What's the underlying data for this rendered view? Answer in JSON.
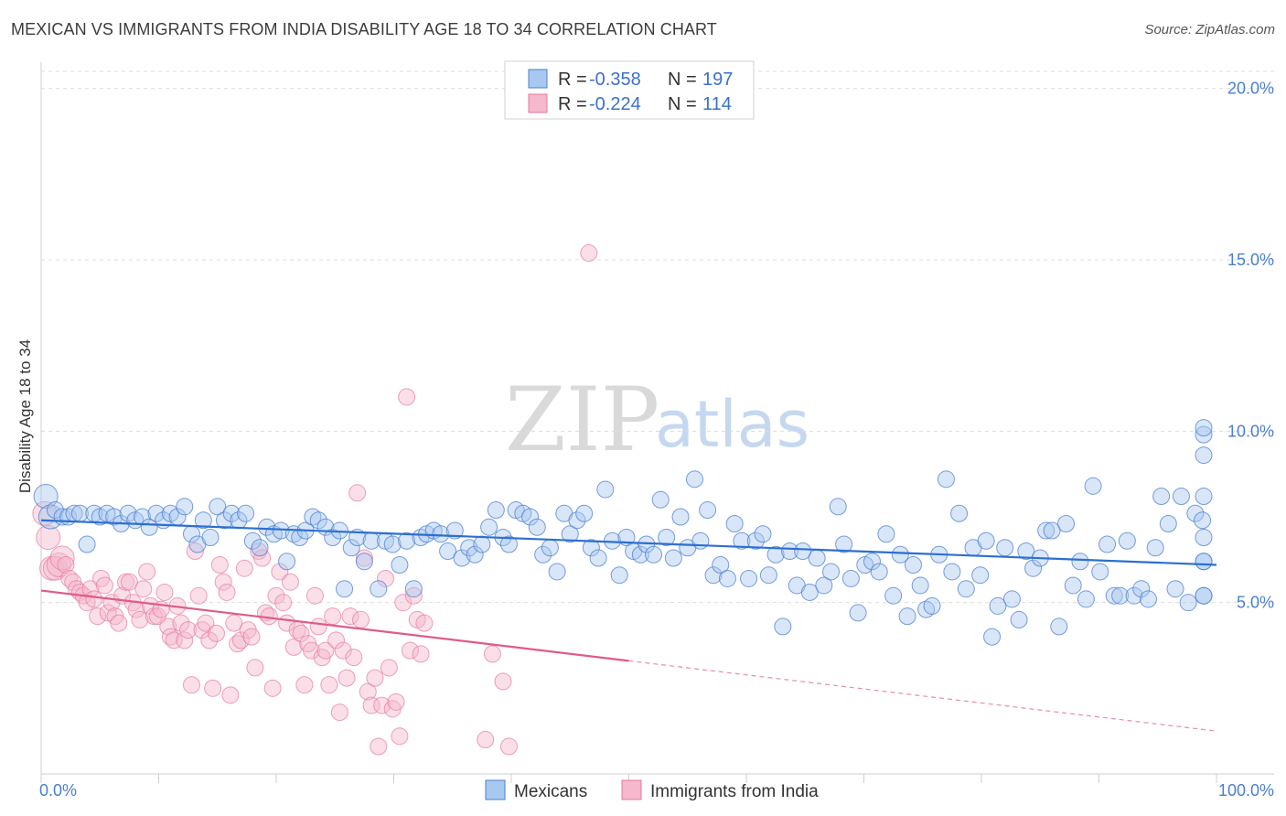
{
  "title": "MEXICAN VS IMMIGRANTS FROM INDIA DISABILITY AGE 18 TO 34 CORRELATION CHART",
  "source": "Source: ZipAtlas.com",
  "watermark": {
    "part1": "ZIP",
    "part2": "atlas"
  },
  "colors": {
    "blue": "#4a7fd0",
    "blue_fill": "#a9c8ef",
    "blue_line": "#2c6fd1",
    "pink_fill": "#f5b8cc",
    "pink_stroke": "#e8799c",
    "pink_line": "#e05a8a"
  },
  "legend": {
    "r_label": "R = ",
    "n_label": "N = ",
    "series": [
      {
        "name": "Mexicans",
        "r": "-0.358",
        "n": "197"
      },
      {
        "name": "Immigrants from India",
        "r": "-0.224",
        "n": "114"
      }
    ]
  },
  "chart_data": {
    "type": "scatter",
    "ylabel": "Disability Age 18 to 34",
    "xlabel": "",
    "xlim": [
      0,
      100
    ],
    "ylim": [
      0,
      20.5
    ],
    "x_tick_labels": [
      "0.0%",
      "100.0%"
    ],
    "y_ticks": [
      5,
      10,
      15,
      20
    ],
    "y_tick_labels": [
      "5.0%",
      "10.0%",
      "15.0%",
      "20.0%"
    ],
    "series": [
      {
        "name": "Mexicans",
        "r": -0.358,
        "n": 197,
        "trend": {
          "x": [
            0,
            100
          ],
          "y": [
            7.4,
            6.1
          ],
          "dashed_from": null
        },
        "points": [
          [
            0.4,
            8.1
          ],
          [
            0.8,
            7.5
          ],
          [
            1.2,
            7.7
          ],
          [
            1.8,
            7.5
          ],
          [
            2.3,
            7.5
          ],
          [
            2.8,
            7.6
          ],
          [
            3.3,
            7.6
          ],
          [
            3.9,
            6.7
          ],
          [
            4.5,
            7.6
          ],
          [
            5,
            7.5
          ],
          [
            5.6,
            7.6
          ],
          [
            6.2,
            7.5
          ],
          [
            6.8,
            7.3
          ],
          [
            7.4,
            7.6
          ],
          [
            8,
            7.4
          ],
          [
            8.6,
            7.5
          ],
          [
            9.2,
            7.2
          ],
          [
            9.8,
            7.6
          ],
          [
            10.4,
            7.4
          ],
          [
            11,
            7.6
          ],
          [
            11.6,
            7.5
          ],
          [
            12.2,
            7.8
          ],
          [
            12.8,
            7
          ],
          [
            13.3,
            6.7
          ],
          [
            13.8,
            7.4
          ],
          [
            14.4,
            6.9
          ],
          [
            15,
            7.8
          ],
          [
            15.6,
            7.4
          ],
          [
            16.2,
            7.6
          ],
          [
            16.8,
            7.4
          ],
          [
            17.4,
            7.6
          ],
          [
            18,
            6.8
          ],
          [
            18.6,
            6.6
          ],
          [
            19.2,
            7.2
          ],
          [
            19.8,
            7
          ],
          [
            20.4,
            7.1
          ],
          [
            20.9,
            6.2
          ],
          [
            21.5,
            7
          ],
          [
            22,
            6.9
          ],
          [
            22.5,
            7.1
          ],
          [
            23.1,
            7.5
          ],
          [
            23.6,
            7.4
          ],
          [
            24.2,
            7.2
          ],
          [
            24.8,
            6.9
          ],
          [
            25.4,
            7.1
          ],
          [
            25.8,
            5.4
          ],
          [
            26.4,
            6.6
          ],
          [
            26.9,
            6.9
          ],
          [
            27.5,
            6.2
          ],
          [
            28.1,
            6.8
          ],
          [
            28.7,
            5.4
          ],
          [
            29.3,
            6.8
          ],
          [
            29.9,
            6.7
          ],
          [
            30.5,
            6.1
          ],
          [
            31.1,
            6.8
          ],
          [
            31.7,
            5.4
          ],
          [
            32.3,
            6.9
          ],
          [
            32.8,
            7
          ],
          [
            33.4,
            7.1
          ],
          [
            34,
            7
          ],
          [
            34.6,
            6.5
          ],
          [
            35.2,
            7.1
          ],
          [
            35.8,
            6.3
          ],
          [
            36.4,
            6.6
          ],
          [
            36.9,
            6.4
          ],
          [
            37.5,
            6.7
          ],
          [
            38.1,
            7.2
          ],
          [
            38.7,
            7.7
          ],
          [
            39.3,
            6.9
          ],
          [
            39.8,
            6.7
          ],
          [
            40.4,
            7.7
          ],
          [
            41,
            7.6
          ],
          [
            41.6,
            7.5
          ],
          [
            42.2,
            7.2
          ],
          [
            42.7,
            6.4
          ],
          [
            43.3,
            6.6
          ],
          [
            43.9,
            5.9
          ],
          [
            44.5,
            7.6
          ],
          [
            45,
            7
          ],
          [
            45.6,
            7.4
          ],
          [
            46.2,
            7.6
          ],
          [
            46.8,
            6.6
          ],
          [
            47.4,
            6.3
          ],
          [
            48,
            8.3
          ],
          [
            48.6,
            6.8
          ],
          [
            49.2,
            5.8
          ],
          [
            49.8,
            6.9
          ],
          [
            50.4,
            6.5
          ],
          [
            51,
            6.4
          ],
          [
            51.5,
            6.7
          ],
          [
            52.1,
            6.4
          ],
          [
            52.7,
            8
          ],
          [
            53.2,
            6.9
          ],
          [
            53.8,
            6.3
          ],
          [
            54.4,
            7.5
          ],
          [
            55,
            6.6
          ],
          [
            55.6,
            8.6
          ],
          [
            56.1,
            6.8
          ],
          [
            56.7,
            7.7
          ],
          [
            57.2,
            5.8
          ],
          [
            57.8,
            6.1
          ],
          [
            58.4,
            5.7
          ],
          [
            59,
            7.3
          ],
          [
            59.6,
            6.8
          ],
          [
            60.2,
            5.7
          ],
          [
            60.8,
            6.8
          ],
          [
            61.4,
            7
          ],
          [
            61.9,
            5.8
          ],
          [
            62.5,
            6.4
          ],
          [
            63.1,
            4.3
          ],
          [
            63.7,
            6.5
          ],
          [
            64.3,
            5.5
          ],
          [
            64.8,
            6.5
          ],
          [
            65.4,
            5.3
          ],
          [
            66,
            6.3
          ],
          [
            66.6,
            5.5
          ],
          [
            67.2,
            5.9
          ],
          [
            67.8,
            7.8
          ],
          [
            68.3,
            6.7
          ],
          [
            68.9,
            5.7
          ],
          [
            69.5,
            4.7
          ],
          [
            70.1,
            6.1
          ],
          [
            70.7,
            6.2
          ],
          [
            71.3,
            5.9
          ],
          [
            71.9,
            7
          ],
          [
            72.5,
            5.2
          ],
          [
            73.1,
            6.4
          ],
          [
            73.7,
            4.6
          ],
          [
            74.2,
            6.1
          ],
          [
            74.8,
            5.5
          ],
          [
            75.3,
            4.8
          ],
          [
            75.8,
            4.9
          ],
          [
            76.4,
            6.4
          ],
          [
            77,
            8.6
          ],
          [
            77.5,
            5.9
          ],
          [
            78.1,
            7.6
          ],
          [
            78.7,
            5.4
          ],
          [
            79.3,
            6.6
          ],
          [
            79.9,
            5.8
          ],
          [
            80.4,
            6.8
          ],
          [
            80.9,
            4
          ],
          [
            81.4,
            4.9
          ],
          [
            82,
            6.6
          ],
          [
            82.6,
            5.1
          ],
          [
            83.2,
            4.5
          ],
          [
            83.8,
            6.5
          ],
          [
            84.4,
            6
          ],
          [
            85,
            6.3
          ],
          [
            85.5,
            7.1
          ],
          [
            86,
            7.1
          ],
          [
            86.6,
            4.3
          ],
          [
            87.2,
            7.3
          ],
          [
            87.8,
            5.5
          ],
          [
            88.4,
            6.2
          ],
          [
            88.9,
            5.1
          ],
          [
            89.5,
            8.4
          ],
          [
            90.1,
            5.9
          ],
          [
            90.7,
            6.7
          ],
          [
            91.3,
            5.2
          ],
          [
            91.8,
            5.2
          ],
          [
            92.4,
            6.8
          ],
          [
            93,
            5.2
          ],
          [
            93.6,
            5.4
          ],
          [
            94.2,
            5.1
          ],
          [
            94.8,
            6.6
          ],
          [
            95.3,
            8.1
          ],
          [
            95.9,
            7.3
          ],
          [
            96.5,
            5.4
          ],
          [
            97,
            8.1
          ],
          [
            97.6,
            5
          ],
          [
            98.2,
            7.6
          ],
          [
            98.8,
            7.4
          ],
          [
            99.3,
            5.2
          ],
          [
            99.8,
            6.2
          ],
          [
            100.4,
            6.9
          ],
          [
            101,
            9.3
          ],
          [
            101.5,
            6.2
          ],
          [
            102,
            9.9
          ],
          [
            102.6,
            10.1
          ],
          [
            103.1,
            5.2
          ],
          [
            103.6,
            8.1
          ]
        ]
      },
      {
        "name": "Immigrants from India",
        "r": -0.224,
        "n": 114,
        "trend": {
          "x": [
            0,
            100
          ],
          "y": [
            5.35,
            1.25
          ],
          "solid_until": 50
        },
        "points": [
          [
            0.3,
            7.6
          ],
          [
            0.6,
            6.9
          ],
          [
            0.9,
            6
          ],
          [
            1.2,
            6
          ],
          [
            1.5,
            6.1
          ],
          [
            1.8,
            6.3
          ],
          [
            2.1,
            6.1
          ],
          [
            2.4,
            5.7
          ],
          [
            2.7,
            5.6
          ],
          [
            3,
            5.4
          ],
          [
            3.3,
            5.3
          ],
          [
            3.6,
            5.2
          ],
          [
            3.9,
            5
          ],
          [
            4.2,
            5.4
          ],
          [
            4.5,
            5.1
          ],
          [
            4.8,
            4.6
          ],
          [
            5.1,
            5.7
          ],
          [
            5.4,
            5.5
          ],
          [
            5.7,
            4.7
          ],
          [
            6,
            5
          ],
          [
            6.3,
            4.6
          ],
          [
            6.6,
            4.4
          ],
          [
            6.9,
            5.2
          ],
          [
            7.2,
            5.6
          ],
          [
            7.5,
            5.6
          ],
          [
            7.8,
            5
          ],
          [
            8.1,
            4.8
          ],
          [
            8.4,
            4.5
          ],
          [
            8.7,
            5.4
          ],
          [
            9,
            5.9
          ],
          [
            9.3,
            4.9
          ],
          [
            9.6,
            4.6
          ],
          [
            9.9,
            4.6
          ],
          [
            10.2,
            4.8
          ],
          [
            10.5,
            5.3
          ],
          [
            10.8,
            4.3
          ],
          [
            11,
            4
          ],
          [
            11.3,
            3.9
          ],
          [
            11.6,
            4.9
          ],
          [
            11.9,
            4.4
          ],
          [
            12.2,
            3.9
          ],
          [
            12.5,
            4.2
          ],
          [
            12.8,
            2.6
          ],
          [
            13.1,
            6.5
          ],
          [
            13.4,
            5.2
          ],
          [
            13.7,
            4.2
          ],
          [
            14,
            4.4
          ],
          [
            14.3,
            3.9
          ],
          [
            14.6,
            2.5
          ],
          [
            14.9,
            4.1
          ],
          [
            15.2,
            6.1
          ],
          [
            15.5,
            5.6
          ],
          [
            15.8,
            5.3
          ],
          [
            16.1,
            2.3
          ],
          [
            16.4,
            4.4
          ],
          [
            16.7,
            3.8
          ],
          [
            17,
            3.9
          ],
          [
            17.3,
            6
          ],
          [
            17.6,
            4.2
          ],
          [
            17.9,
            4
          ],
          [
            18.2,
            3.1
          ],
          [
            18.5,
            6.5
          ],
          [
            18.8,
            6.3
          ],
          [
            19.1,
            4.7
          ],
          [
            19.4,
            4.6
          ],
          [
            19.7,
            2.5
          ],
          [
            20,
            5.2
          ],
          [
            20.3,
            5.9
          ],
          [
            20.6,
            5
          ],
          [
            20.9,
            4.4
          ],
          [
            21.2,
            5.6
          ],
          [
            21.5,
            3.7
          ],
          [
            21.8,
            4.2
          ],
          [
            22.1,
            4.1
          ],
          [
            22.4,
            2.6
          ],
          [
            22.7,
            3.8
          ],
          [
            23,
            3.6
          ],
          [
            23.3,
            5.2
          ],
          [
            23.6,
            4.3
          ],
          [
            23.9,
            3.4
          ],
          [
            24.2,
            3.6
          ],
          [
            24.5,
            2.6
          ],
          [
            24.8,
            4.6
          ],
          [
            25.1,
            3.9
          ],
          [
            25.4,
            1.8
          ],
          [
            25.7,
            3.6
          ],
          [
            26,
            2.8
          ],
          [
            26.3,
            4.6
          ],
          [
            26.6,
            3.4
          ],
          [
            26.9,
            8.2
          ],
          [
            27.2,
            4.5
          ],
          [
            27.5,
            6.3
          ],
          [
            27.8,
            2.4
          ],
          [
            28.1,
            2
          ],
          [
            28.4,
            2.8
          ],
          [
            28.7,
            0.8
          ],
          [
            29,
            2
          ],
          [
            29.3,
            5.7
          ],
          [
            29.6,
            3.1
          ],
          [
            29.9,
            1.9
          ],
          [
            30.2,
            2.1
          ],
          [
            30.5,
            1.1
          ],
          [
            30.8,
            5
          ],
          [
            31.1,
            11
          ],
          [
            31.4,
            3.6
          ],
          [
            31.7,
            5.2
          ],
          [
            32,
            4.5
          ],
          [
            32.3,
            3.5
          ],
          [
            32.6,
            4.4
          ],
          [
            46.6,
            15.2
          ],
          [
            38.4,
            3.5
          ],
          [
            37.8,
            1
          ],
          [
            39.3,
            2.7
          ],
          [
            39.8,
            0.8
          ]
        ]
      }
    ]
  }
}
